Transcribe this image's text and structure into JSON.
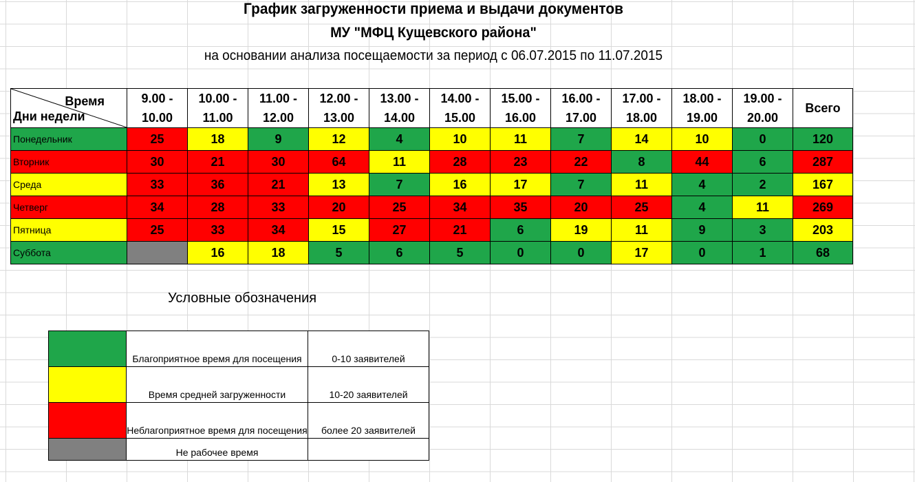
{
  "title": {
    "line1": "График загруженности приема и выдачи документов",
    "line2": "МУ \"МФЦ Кущевского района\"",
    "line3": "на основании анализа посещаемости за период с 06.07.2015 по 11.07.2015"
  },
  "table": {
    "corner_time": "Время",
    "corner_days": "Дни недели",
    "time_slots": [
      {
        "l1": "9.00 -",
        "l2": "10.00"
      },
      {
        "l1": "10.00 -",
        "l2": "11.00"
      },
      {
        "l1": "11.00 -",
        "l2": "12.00"
      },
      {
        "l1": "12.00 -",
        "l2": "13.00"
      },
      {
        "l1": "13.00 -",
        "l2": "14.00"
      },
      {
        "l1": "14.00 -",
        "l2": "15.00"
      },
      {
        "l1": "15.00 -",
        "l2": "16.00"
      },
      {
        "l1": "16.00 -",
        "l2": "17.00"
      },
      {
        "l1": "17.00 -",
        "l2": "18.00"
      },
      {
        "l1": "18.00 -",
        "l2": "19.00"
      },
      {
        "l1": "19.00 -",
        "l2": "20.00"
      }
    ],
    "total_header": "Всего",
    "rows": [
      {
        "day": "Понедельник",
        "day_color": "g",
        "values": [
          "25",
          "18",
          "9",
          "12",
          "4",
          "10",
          "11",
          "7",
          "14",
          "10",
          "0"
        ],
        "colors": [
          "r",
          "y",
          "g",
          "y",
          "g",
          "y",
          "y",
          "g",
          "y",
          "y",
          "g"
        ],
        "total": "120",
        "total_color": "g"
      },
      {
        "day": "Вторник",
        "day_color": "r",
        "values": [
          "30",
          "21",
          "30",
          "64",
          "11",
          "28",
          "23",
          "22",
          "8",
          "44",
          "6"
        ],
        "colors": [
          "r",
          "r",
          "r",
          "r",
          "y",
          "r",
          "r",
          "r",
          "g",
          "r",
          "g"
        ],
        "total": "287",
        "total_color": "r"
      },
      {
        "day": "Среда",
        "day_color": "y",
        "values": [
          "33",
          "36",
          "21",
          "13",
          "7",
          "16",
          "17",
          "7",
          "11",
          "4",
          "2"
        ],
        "colors": [
          "r",
          "r",
          "r",
          "y",
          "g",
          "y",
          "y",
          "g",
          "y",
          "g",
          "g"
        ],
        "total": "167",
        "total_color": "y"
      },
      {
        "day": "Четверг",
        "day_color": "r",
        "values": [
          "34",
          "28",
          "33",
          "20",
          "25",
          "34",
          "35",
          "20",
          "25",
          "4",
          "11"
        ],
        "colors": [
          "r",
          "r",
          "r",
          "r",
          "r",
          "r",
          "r",
          "r",
          "r",
          "g",
          "y"
        ],
        "total": "269",
        "total_color": "r"
      },
      {
        "day": "Пятница",
        "day_color": "y",
        "values": [
          "25",
          "33",
          "34",
          "15",
          "27",
          "21",
          "6",
          "19",
          "11",
          "9",
          "3"
        ],
        "colors": [
          "r",
          "r",
          "r",
          "y",
          "r",
          "r",
          "g",
          "y",
          "y",
          "g",
          "g"
        ],
        "total": "203",
        "total_color": "y"
      },
      {
        "day": "Суббота",
        "day_color": "g",
        "values": [
          "",
          "16",
          "18",
          "5",
          "6",
          "5",
          "0",
          "0",
          "17",
          "0",
          "1"
        ],
        "colors": [
          "x",
          "y",
          "y",
          "g",
          "g",
          "g",
          "g",
          "g",
          "y",
          "g",
          "g"
        ],
        "total": "68",
        "total_color": "g"
      }
    ]
  },
  "legend": {
    "title": "Условные обозначения",
    "items": [
      {
        "color": "g",
        "desc": "Благоприятное время для посещения",
        "range": "0-10 заявителей"
      },
      {
        "color": "y",
        "desc": "Время средней загруженности",
        "range": "10-20 заявителей"
      },
      {
        "color": "r",
        "desc": "Неблагоприятное время для посещения",
        "range": "более 20 заявителей"
      },
      {
        "color": "x",
        "desc": "Не рабочее время",
        "range": ""
      }
    ]
  },
  "colors": {
    "g": "#1fa64a",
    "y": "#ffff00",
    "r": "#ff0000",
    "x": "#808080"
  }
}
